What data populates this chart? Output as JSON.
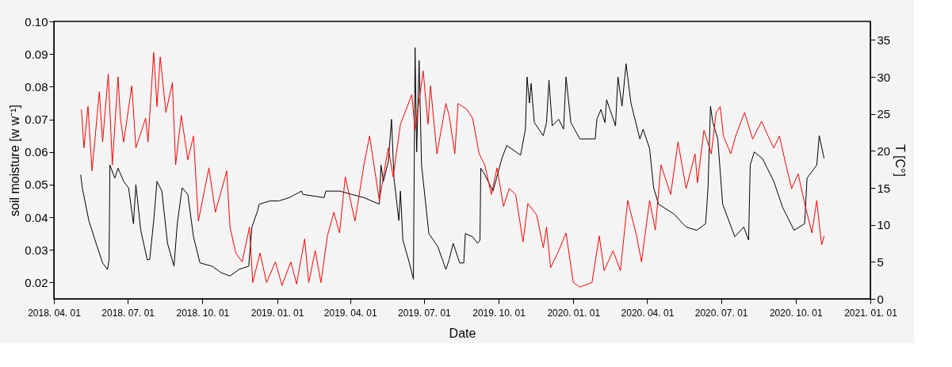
{
  "chart_data": {
    "type": "line",
    "xlabel": "Date",
    "ylabel": "soil moisture [w w⁻¹]",
    "y2label": "T [C°]",
    "xlim": [
      "2018-04-01",
      "2021-01-01"
    ],
    "xticks": [
      {
        "value": "2018-04-01",
        "label": "2018. 04. 01"
      },
      {
        "value": "2018-07-01",
        "label": "2018. 07. 01"
      },
      {
        "value": "2018-10-01",
        "label": "2018. 10. 01"
      },
      {
        "value": "2019-01-01",
        "label": "2019. 01. 01"
      },
      {
        "value": "2019-04-01",
        "label": "2019. 04. 01"
      },
      {
        "value": "2019-07-01",
        "label": "2019. 07. 01"
      },
      {
        "value": "2019-10-01",
        "label": "2019. 10. 01"
      },
      {
        "value": "2020-01-01",
        "label": "2020. 01. 01"
      },
      {
        "value": "2020-04-01",
        "label": "2020. 04. 01"
      },
      {
        "value": "2020-07-01",
        "label": "2020. 07. 01"
      },
      {
        "value": "2020-10-01",
        "label": "2020. 10. 01"
      },
      {
        "value": "2021-01-01",
        "label": "2021. 01. 01"
      }
    ],
    "ylim": [
      0.015,
      0.1
    ],
    "yticks": [
      0.02,
      0.03,
      0.04,
      0.05,
      0.06,
      0.07,
      0.08,
      0.09,
      {
        "value": 0.1,
        "label": "0.10"
      }
    ],
    "y2lim": [
      0,
      37.5
    ],
    "y2ticks": [
      0,
      5,
      10,
      15,
      20,
      25,
      30,
      35
    ],
    "series": [
      {
        "color": "#000000",
        "x": [
          "2018-05-04",
          "2018-05-06",
          "2018-05-14",
          "2018-05-23",
          "2018-05-31",
          "2018-06-06",
          "2018-06-08",
          "2018-06-09",
          "2018-06-15",
          "2018-06-19",
          "2018-06-26",
          "2018-07-02",
          "2018-07-08",
          "2018-07-11",
          "2018-07-17",
          "2018-07-25",
          "2018-07-28",
          "2018-08-02",
          "2018-08-06",
          "2018-08-12",
          "2018-08-19",
          "2018-08-27",
          "2018-08-31",
          "2018-09-06",
          "2018-09-13",
          "2018-09-20",
          "2018-09-28",
          "2018-10-13",
          "2018-10-24",
          "2018-11-04",
          "2018-11-15",
          "2018-11-27",
          "2018-12-01",
          "2018-12-08",
          "2018-12-10",
          "2018-12-23",
          "2019-01-03",
          "2019-01-16",
          "2019-01-31",
          "2019-02-02",
          "2019-02-28",
          "2019-03-02",
          "2019-03-19",
          "2019-04-03",
          "2019-04-18",
          "2019-05-07",
          "2019-05-09",
          "2019-05-12",
          "2019-05-18",
          "2019-05-22",
          "2019-05-25",
          "2019-05-31",
          "2019-06-02",
          "2019-06-05",
          "2019-06-13",
          "2019-06-18",
          "2019-06-20",
          "2019-06-22",
          "2019-06-25",
          "2019-06-28",
          "2019-07-07",
          "2019-07-18",
          "2019-07-28",
          "2019-08-01",
          "2019-08-06",
          "2019-08-14",
          "2019-08-19",
          "2019-08-21",
          "2019-08-30",
          "2019-09-05",
          "2019-09-08",
          "2019-09-09",
          "2019-09-14",
          "2019-09-24",
          "2019-10-05",
          "2019-10-11",
          "2019-10-28",
          "2019-11-03",
          "2019-11-05",
          "2019-11-08",
          "2019-11-10",
          "2019-11-14",
          "2019-11-25",
          "2019-11-29",
          "2019-12-02",
          "2019-12-06",
          "2019-12-14",
          "2019-12-20",
          "2019-12-23",
          "2019-12-29",
          "2020-01-09",
          "2020-01-28",
          "2020-01-30",
          "2020-02-04",
          "2020-02-09",
          "2020-02-11",
          "2020-02-22",
          "2020-02-25",
          "2020-03-01",
          "2020-03-06",
          "2020-03-12",
          "2020-03-23",
          "2020-03-27",
          "2020-04-04",
          "2020-04-09",
          "2020-04-15",
          "2020-05-04",
          "2020-05-19",
          "2020-06-01",
          "2020-06-12",
          "2020-06-15",
          "2020-06-18",
          "2020-06-21",
          "2020-06-27",
          "2020-07-03",
          "2020-07-18",
          "2020-07-29",
          "2020-08-04",
          "2020-08-06",
          "2020-08-11",
          "2020-08-21",
          "2020-09-04",
          "2020-09-15",
          "2020-09-29",
          "2020-10-12",
          "2020-10-15",
          "2020-10-27",
          "2020-10-30",
          "2020-11-05"
        ],
        "values": [
          0.053,
          0.049,
          0.039,
          0.032,
          0.026,
          0.024,
          0.027,
          0.056,
          0.052,
          0.055,
          0.051,
          0.049,
          0.038,
          0.05,
          0.036,
          0.027,
          0.027,
          0.039,
          0.051,
          0.048,
          0.032,
          0.025,
          0.038,
          0.049,
          0.047,
          0.034,
          0.026,
          0.025,
          0.023,
          0.022,
          0.024,
          0.025,
          0.037,
          0.042,
          0.044,
          0.045,
          0.045,
          0.046,
          0.048,
          0.047,
          0.046,
          0.048,
          0.048,
          0.047,
          0.046,
          0.044,
          0.056,
          0.051,
          0.057,
          0.07,
          0.052,
          0.039,
          0.048,
          0.033,
          0.026,
          0.021,
          0.092,
          0.06,
          0.088,
          0.056,
          0.035,
          0.031,
          0.024,
          0.027,
          0.032,
          0.026,
          0.026,
          0.035,
          0.034,
          0.032,
          0.033,
          0.055,
          0.053,
          0.048,
          0.058,
          0.062,
          0.059,
          0.067,
          0.083,
          0.075,
          0.081,
          0.069,
          0.065,
          0.069,
          0.082,
          0.068,
          0.07,
          0.067,
          0.083,
          0.069,
          0.064,
          0.064,
          0.07,
          0.073,
          0.069,
          0.076,
          0.068,
          0.083,
          0.074,
          0.087,
          0.075,
          0.064,
          0.067,
          0.061,
          0.049,
          0.044,
          0.041,
          0.037,
          0.036,
          0.038,
          0.049,
          0.074,
          0.069,
          0.064,
          0.044,
          0.034,
          0.037,
          0.033,
          0.056,
          0.06,
          0.058,
          0.051,
          0.043,
          0.036,
          0.038,
          0.052,
          0.056,
          0.065,
          0.058
        ]
      },
      {
        "color": "#ff0000",
        "axis": "y2",
        "x": [
          "2018-05-05",
          "2018-05-08",
          "2018-05-13",
          "2018-05-18",
          "2018-05-27",
          "2018-05-31",
          "2018-06-07",
          "2018-06-12",
          "2018-06-19",
          "2018-06-22",
          "2018-06-26",
          "2018-07-06",
          "2018-07-11",
          "2018-07-23",
          "2018-07-26",
          "2018-08-02",
          "2018-08-06",
          "2018-08-10",
          "2018-08-17",
          "2018-08-25",
          "2018-08-29",
          "2018-09-05",
          "2018-09-13",
          "2018-09-20",
          "2018-09-26",
          "2018-10-09",
          "2018-10-17",
          "2018-10-31",
          "2018-11-04",
          "2018-11-11",
          "2018-11-19",
          "2018-11-28",
          "2018-12-02",
          "2018-12-11",
          "2018-12-19",
          "2018-12-30",
          "2019-01-07",
          "2019-01-18",
          "2019-01-25",
          "2019-02-04",
          "2019-02-09",
          "2019-02-17",
          "2019-02-24",
          "2019-03-04",
          "2019-03-12",
          "2019-03-19",
          "2019-03-26",
          "2019-04-07",
          "2019-04-18",
          "2019-04-25",
          "2019-05-07",
          "2019-05-18",
          "2019-05-24",
          "2019-06-02",
          "2019-06-16",
          "2019-06-20",
          "2019-06-30",
          "2019-07-06",
          "2019-07-09",
          "2019-07-17",
          "2019-07-28",
          "2019-08-01",
          "2019-08-08",
          "2019-08-12",
          "2019-08-23",
          "2019-08-30",
          "2019-09-07",
          "2019-09-14",
          "2019-09-22",
          "2019-09-29",
          "2019-10-07",
          "2019-10-14",
          "2019-10-22",
          "2019-10-31",
          "2019-11-06",
          "2019-11-17",
          "2019-11-25",
          "2019-11-29",
          "2019-12-04",
          "2019-12-14",
          "2019-12-23",
          "2020-01-01",
          "2020-01-09",
          "2020-01-24",
          "2020-02-02",
          "2020-02-08",
          "2020-02-19",
          "2020-02-28",
          "2020-03-08",
          "2020-03-19",
          "2020-03-25",
          "2020-04-04",
          "2020-04-11",
          "2020-04-18",
          "2020-04-30",
          "2020-05-09",
          "2020-05-19",
          "2020-05-30",
          "2020-06-02",
          "2020-06-10",
          "2020-06-19",
          "2020-06-25",
          "2020-06-30",
          "2020-07-04",
          "2020-07-13",
          "2020-07-19",
          "2020-07-30",
          "2020-08-09",
          "2020-08-20",
          "2020-08-28",
          "2020-09-04",
          "2020-09-11",
          "2020-09-19",
          "2020-09-26",
          "2020-10-04",
          "2020-10-12",
          "2020-10-21",
          "2020-10-27",
          "2020-10-30",
          "2020-11-02",
          "2020-11-05"
        ],
        "values": [
          25.6,
          20.4,
          26.0,
          17.3,
          28.0,
          21.2,
          30.4,
          18.1,
          30.0,
          24.4,
          21.2,
          28.8,
          20.4,
          24.4,
          21.2,
          33.3,
          26.0,
          32.7,
          25.2,
          29.2,
          18.1,
          24.8,
          18.8,
          22.0,
          10.5,
          17.7,
          11.7,
          17.3,
          9.7,
          6.2,
          5.0,
          9.7,
          2.2,
          6.2,
          2.2,
          5.0,
          1.8,
          5.0,
          2.0,
          8.1,
          2.2,
          6.5,
          2.2,
          8.5,
          11.7,
          8.9,
          16.5,
          10.5,
          18.1,
          22.0,
          13.3,
          20.4,
          16.5,
          23.6,
          27.6,
          22.8,
          30.8,
          23.6,
          28.8,
          19.6,
          26.4,
          24.8,
          19.6,
          26.4,
          25.6,
          24.4,
          19.6,
          18.1,
          14.1,
          17.7,
          12.5,
          14.9,
          14.1,
          7.7,
          12.9,
          11.3,
          6.9,
          9.7,
          4.2,
          6.5,
          8.9,
          2.2,
          1.6,
          2.2,
          8.5,
          3.8,
          6.5,
          3.8,
          13.3,
          8.5,
          5.0,
          13.3,
          9.3,
          18.1,
          14.1,
          21.2,
          14.9,
          19.6,
          15.7,
          22.8,
          19.6,
          25.2,
          26.0,
          22.0,
          19.6,
          22.0,
          25.2,
          21.6,
          24.0,
          22.0,
          20.4,
          22.0,
          18.1,
          14.9,
          16.9,
          12.9,
          8.9,
          13.3,
          10.1,
          7.3,
          8.5
        ]
      }
    ]
  }
}
